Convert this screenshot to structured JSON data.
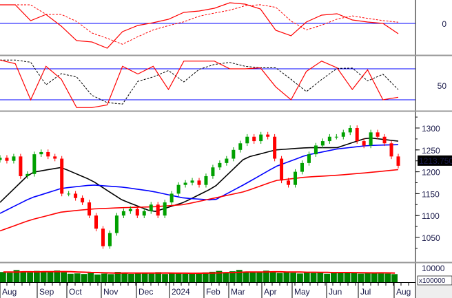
{
  "chart_data": [
    {
      "type": "line",
      "panel": "macd",
      "zero_label": "0",
      "colors": {
        "line": "#ff0000",
        "signal": "#ff0000",
        "zero": "#0000ff"
      },
      "values": [
        27,
        27,
        4,
        13,
        -4,
        -25,
        -27,
        -36,
        -12,
        -3,
        1,
        6,
        16,
        18,
        22,
        30,
        28,
        21,
        -10,
        -18,
        2,
        12,
        14,
        5,
        2,
        0,
        -15
      ]
    },
    {
      "type": "line",
      "panel": "stochastic",
      "tick_label": "50",
      "levels": [
        20,
        80
      ],
      "ylim": [
        0,
        100
      ],
      "colors": {
        "k": "#ff0000",
        "d": "#000000",
        "levels": "#0000ff"
      },
      "values": [
        97,
        90,
        20,
        85,
        60,
        5,
        5,
        10,
        85,
        70,
        85,
        40,
        95,
        95,
        95,
        80,
        80,
        82,
        45,
        20,
        75,
        95,
        82,
        40,
        78,
        20,
        25
      ]
    },
    {
      "type": "candlestick",
      "panel": "price",
      "ylim": [
        1010,
        1335
      ],
      "yticks": [
        "1300",
        "1250",
        "1200",
        "1150",
        "1100",
        "1050"
      ],
      "last_price": "1213.750",
      "closes": [
        1232,
        1225,
        1235,
        1190,
        1195,
        1240,
        1245,
        1235,
        1230,
        1150,
        1150,
        1140,
        1130,
        1100,
        1070,
        1030,
        1060,
        1100,
        1110,
        1115,
        1100,
        1110,
        1125,
        1100,
        1130,
        1150,
        1170,
        1175,
        1180,
        1170,
        1190,
        1210,
        1220,
        1230,
        1250,
        1265,
        1280,
        1270,
        1285,
        1280,
        1230,
        1180,
        1170,
        1200,
        1220,
        1240,
        1260,
        1270,
        1280,
        1280,
        1290,
        1300,
        1270,
        1260,
        1290,
        1280,
        1265,
        1235,
        1213.75
      ],
      "moving_averages": [
        {
          "color": "#000000",
          "values": [
            1130,
            1198,
            1210,
            1180,
            1135,
            1108,
            1130,
            1165,
            1232,
            1250,
            1255,
            1255,
            1278,
            1270
          ]
        },
        {
          "color": "#0000ff",
          "values": [
            1105,
            1140,
            1162,
            1170,
            1165,
            1155,
            1140,
            1135,
            1172,
            1212,
            1238,
            1252,
            1260,
            1262
          ]
        },
        {
          "color": "#ff0000",
          "values": [
            1065,
            1090,
            1108,
            1115,
            1118,
            1120,
            1125,
            1140,
            1155,
            1180,
            1188,
            1192,
            1198,
            1205
          ]
        }
      ],
      "colors": {
        "up": "#00a000",
        "down": "#ff0000"
      }
    },
    {
      "type": "bar",
      "panel": "volume",
      "top_label": "10000",
      "unit_label": "x100000",
      "ma_color": "#ff0000",
      "bar_color": "#008000",
      "values": [
        8200,
        7600,
        9800,
        8400,
        7900,
        9100,
        8700,
        8300,
        9400,
        8000,
        6800,
        7100,
        6600,
        7400,
        6200,
        6900,
        6500,
        8300,
        7200,
        6700,
        7500,
        7800,
        6900,
        8100,
        6600,
        7200,
        7000,
        6800,
        7600,
        7300,
        7900,
        8400,
        9100,
        7700,
        8800,
        9900,
        8500,
        7800,
        8300,
        9300,
        8600,
        7400,
        8200,
        7600,
        7000,
        8000,
        7400,
        7900,
        6800,
        8200,
        7600,
        7300,
        7500,
        6900,
        7200,
        8000,
        7100,
        6900,
        6500
      ]
    }
  ],
  "x_axis": {
    "months": [
      "Aug",
      "Sep",
      "Oct",
      "Nov",
      "Dec",
      "2024",
      "Feb",
      "Mar",
      "Apr",
      "May",
      "Jun",
      "Jul",
      "Aug"
    ]
  }
}
